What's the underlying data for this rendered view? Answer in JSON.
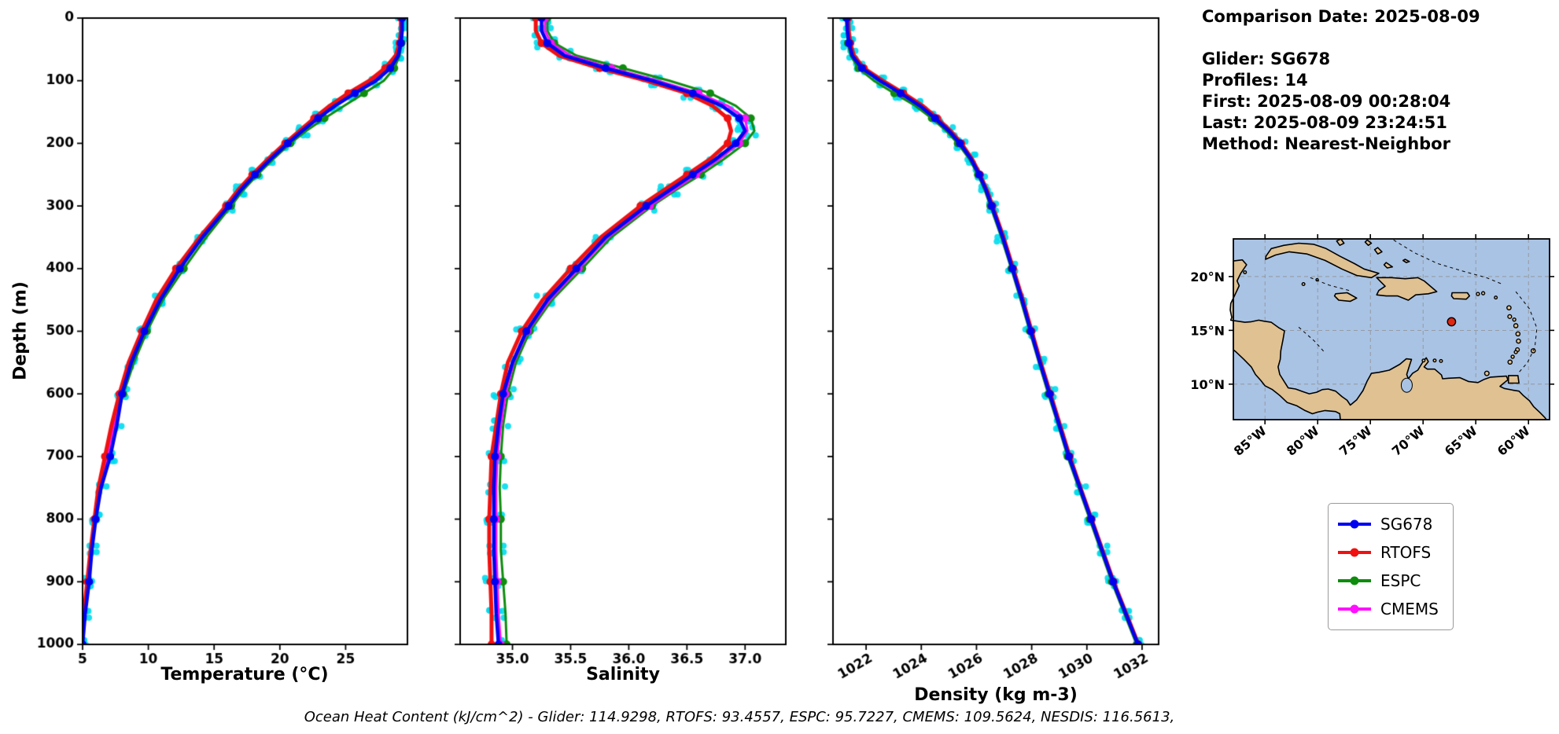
{
  "info": {
    "comparison_date": "Comparison Date: 2025-08-09",
    "lines": [
      "Glider: SG678",
      "Profiles: 14",
      "First: 2025-08-09 00:28:04",
      "Last: 2025-08-09 23:24:51",
      "Method: Nearest-Neighbor"
    ]
  },
  "footer": {
    "text": "Ocean Heat Content (kJ/cm^2) - Glider: 114.9298,  RTOFS: 93.4557,  ESPC: 95.7227,  CMEMS: 109.5624,  NESDIS: 116.5613,"
  },
  "legend": {
    "items": [
      {
        "label": "SG678",
        "color": "#0000f0"
      },
      {
        "label": "RTOFS",
        "color": "#f01010"
      },
      {
        "label": "ESPC",
        "color": "#0e8c0e"
      },
      {
        "label": "CMEMS",
        "color": "#ff10ff"
      }
    ]
  },
  "chart_data": {
    "type": "line",
    "orientation": "vertical-profile",
    "ylabel": "Depth (m)",
    "ylim": [
      0,
      1000
    ],
    "yticks": [
      0,
      100,
      200,
      300,
      400,
      500,
      600,
      700,
      800,
      900,
      1000
    ],
    "observations_color": "#00dcee",
    "series_order_draw": [
      "ESPC",
      "CMEMS",
      "RTOFS",
      "SG678"
    ],
    "depths": [
      0,
      20,
      40,
      60,
      80,
      100,
      120,
      140,
      160,
      180,
      200,
      225,
      250,
      275,
      300,
      350,
      400,
      450,
      500,
      550,
      600,
      650,
      700,
      750,
      800,
      850,
      900,
      950,
      1000
    ],
    "panels": [
      {
        "id": "temperature",
        "xlabel": "Temperature (°C)",
        "xlim": [
          5,
          29.7
        ],
        "xticks": [
          5,
          10,
          15,
          20,
          25
        ],
        "xtick_labels": [
          "5",
          "10",
          "15",
          "20",
          "25"
        ],
        "rotate_xticks": 0,
        "series": {
          "SG678": [
            29.3,
            29.3,
            29.2,
            29.0,
            28.4,
            27.3,
            25.7,
            24.2,
            22.9,
            21.7,
            20.6,
            19.3,
            18.1,
            17.0,
            16.1,
            14.1,
            12.4,
            10.9,
            9.7,
            8.7,
            8.0,
            7.6,
            7.1,
            6.4,
            6.0,
            5.7,
            5.5,
            5.2,
            5.0
          ],
          "RTOFS": [
            29.2,
            29.2,
            29.1,
            28.8,
            28.0,
            26.8,
            25.2,
            23.8,
            22.6,
            21.5,
            20.4,
            19.1,
            17.9,
            16.8,
            15.9,
            13.9,
            12.1,
            10.6,
            9.5,
            8.5,
            7.8,
            7.2,
            6.7,
            6.2,
            5.9,
            5.6,
            5.35,
            5.1,
            4.95
          ],
          "ESPC": [
            29.3,
            29.3,
            29.25,
            29.1,
            28.7,
            27.9,
            26.4,
            24.9,
            23.4,
            22.0,
            20.8,
            19.5,
            18.3,
            17.2,
            16.3,
            14.4,
            12.7,
            11.1,
            9.9,
            8.9,
            8.1,
            7.4,
            6.8,
            6.3,
            5.95,
            5.65,
            5.45,
            5.15,
            5.0
          ],
          "CMEMS": [
            29.25,
            29.25,
            29.15,
            28.9,
            28.2,
            27.0,
            25.4,
            24.0,
            22.7,
            21.6,
            20.5,
            19.2,
            18.0,
            16.9,
            16.0,
            14.0,
            12.3,
            10.8,
            9.6,
            8.6,
            7.9,
            7.4,
            6.9,
            6.35,
            5.95,
            5.65,
            5.45,
            5.15,
            5.0
          ]
        }
      },
      {
        "id": "salinity",
        "xlabel": "Salinity",
        "xlim": [
          34.55,
          37.35
        ],
        "xticks": [
          35.0,
          35.5,
          36.0,
          36.5,
          37.0
        ],
        "xtick_labels": [
          "35.0",
          "35.5",
          "36.0",
          "36.5",
          "37.0"
        ],
        "rotate_xticks": 0,
        "series": {
          "SG678": [
            35.25,
            35.25,
            35.3,
            35.45,
            35.8,
            36.2,
            36.55,
            36.8,
            36.95,
            37.0,
            36.92,
            36.75,
            36.55,
            36.35,
            36.15,
            35.8,
            35.55,
            35.3,
            35.12,
            35.0,
            34.92,
            34.88,
            34.85,
            34.84,
            34.84,
            34.84,
            34.85,
            34.86,
            34.88
          ],
          "RTOFS": [
            35.2,
            35.2,
            35.25,
            35.4,
            35.75,
            36.15,
            36.5,
            36.72,
            36.85,
            36.88,
            36.85,
            36.7,
            36.5,
            36.3,
            36.1,
            35.76,
            35.5,
            35.26,
            35.08,
            34.96,
            34.9,
            34.86,
            34.82,
            34.81,
            34.8,
            34.8,
            34.81,
            34.82,
            34.82
          ],
          "ESPC": [
            35.3,
            35.3,
            35.36,
            35.55,
            35.95,
            36.35,
            36.7,
            36.92,
            37.05,
            37.08,
            37.0,
            36.82,
            36.62,
            36.4,
            36.2,
            35.85,
            35.6,
            35.34,
            35.15,
            35.03,
            34.96,
            34.92,
            34.9,
            34.89,
            34.9,
            34.9,
            34.92,
            34.94,
            34.95
          ],
          "CMEMS": [
            35.28,
            35.28,
            35.33,
            35.5,
            35.85,
            36.25,
            36.6,
            36.85,
            37.0,
            37.02,
            36.95,
            36.78,
            36.58,
            36.38,
            36.18,
            35.82,
            35.57,
            35.32,
            35.13,
            35.01,
            34.94,
            34.9,
            34.87,
            34.86,
            34.86,
            34.86,
            34.87,
            34.88,
            34.9
          ]
        }
      },
      {
        "id": "density",
        "xlabel": "Density (kg m-3)",
        "xlim": [
          1020.8,
          1032.6
        ],
        "xticks": [
          1022,
          1024,
          1026,
          1028,
          1030,
          1032
        ],
        "xtick_labels": [
          "1022",
          "1024",
          "1026",
          "1028",
          "1030",
          "1032"
        ],
        "rotate_xticks": 30,
        "series": {
          "SG678": [
            1021.3,
            1021.32,
            1021.38,
            1021.5,
            1021.85,
            1022.5,
            1023.25,
            1023.95,
            1024.5,
            1025.0,
            1025.4,
            1025.8,
            1026.1,
            1026.35,
            1026.55,
            1026.95,
            1027.3,
            1027.65,
            1027.97,
            1028.3,
            1028.65,
            1029.0,
            1029.35,
            1029.75,
            1030.15,
            1030.55,
            1030.95,
            1031.4,
            1031.85
          ],
          "RTOFS": [
            1021.35,
            1021.37,
            1021.43,
            1021.56,
            1021.92,
            1022.6,
            1023.35,
            1024.05,
            1024.58,
            1025.06,
            1025.45,
            1025.84,
            1026.13,
            1026.38,
            1026.58,
            1026.98,
            1027.33,
            1027.68,
            1028.0,
            1028.33,
            1028.68,
            1029.03,
            1029.38,
            1029.77,
            1030.17,
            1030.57,
            1030.97,
            1031.42,
            1031.87
          ],
          "ESPC": [
            1021.28,
            1021.3,
            1021.34,
            1021.44,
            1021.72,
            1022.28,
            1023.02,
            1023.78,
            1024.38,
            1024.9,
            1025.32,
            1025.74,
            1026.05,
            1026.3,
            1026.5,
            1026.9,
            1027.26,
            1027.6,
            1027.93,
            1028.26,
            1028.6,
            1028.96,
            1029.3,
            1029.7,
            1030.1,
            1030.5,
            1030.9,
            1031.35,
            1031.8
          ],
          "CMEMS": [
            1021.32,
            1021.34,
            1021.4,
            1021.52,
            1021.88,
            1022.55,
            1023.3,
            1024.0,
            1024.54,
            1025.03,
            1025.42,
            1025.82,
            1026.11,
            1026.36,
            1026.56,
            1026.96,
            1027.31,
            1027.66,
            1027.98,
            1028.31,
            1028.66,
            1029.01,
            1029.36,
            1029.76,
            1030.16,
            1030.56,
            1030.96,
            1031.41,
            1031.86
          ]
        }
      }
    ]
  },
  "map": {
    "extent": {
      "lon_min": -88,
      "lon_max": -58,
      "lat_min": 6.7,
      "lat_max": 23.5
    },
    "xticks": [
      -85,
      -80,
      -75,
      -70,
      -65,
      -60
    ],
    "xtick_labels": [
      "85°W",
      "80°W",
      "75°W",
      "70°W",
      "65°W",
      "60°W"
    ],
    "yticks": [
      20,
      15,
      10
    ],
    "ytick_labels": [
      "20°N",
      "15°N",
      "10°N"
    ],
    "marker": {
      "lon": -67.3,
      "lat": 15.8
    },
    "colors": {
      "ocean": "#a9c3e4",
      "land": "#dfc192",
      "coast": "#000000",
      "marker": "#e02810",
      "grid": "#909090"
    }
  }
}
